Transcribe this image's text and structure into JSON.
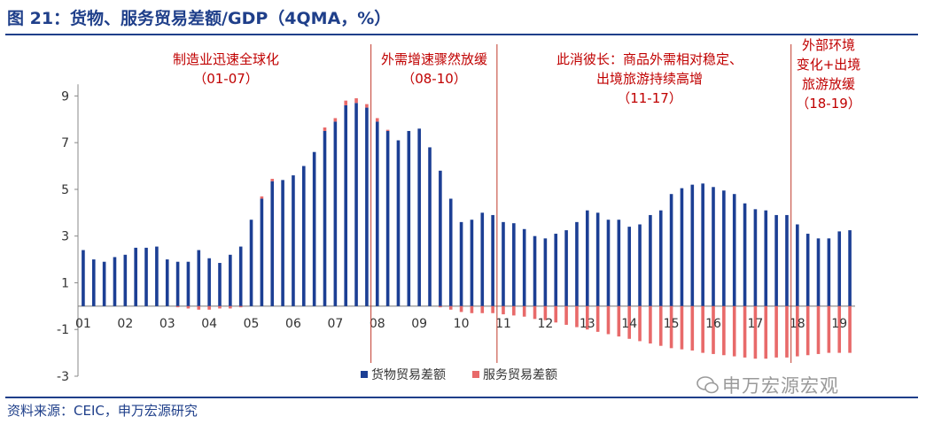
{
  "page": {
    "title": "图 21：货物、服务贸易差额/GDP（4QMA，%）",
    "source": "资料来源：CEIC，申万宏源研究",
    "watermark": "申万宏源宏观"
  },
  "chart_data": {
    "type": "bar",
    "title": "货物、服务贸易差额/GDP（4QMA，%）",
    "xlabel": "",
    "ylabel": "",
    "ylim": [
      -3,
      10
    ],
    "yticks": [
      -3,
      -1,
      1,
      3,
      5,
      7,
      9
    ],
    "x_tick_labels": [
      "01",
      "02",
      "03",
      "04",
      "05",
      "06",
      "07",
      "08",
      "09",
      "10",
      "11",
      "12",
      "13",
      "14",
      "15",
      "16",
      "17",
      "18",
      "19"
    ],
    "grid": false,
    "legend_position": "bottom",
    "colors": {
      "goods": "#1c3f94",
      "services": "#e86a6a",
      "vline": "#c0392b",
      "annotation": "#c00000",
      "title": "#1f3f8a"
    },
    "series": [
      {
        "name": "货物贸易差额",
        "values": [
          2.4,
          2.0,
          1.9,
          2.1,
          2.2,
          2.5,
          2.5,
          2.55,
          2.0,
          1.9,
          1.9,
          2.4,
          2.05,
          1.85,
          2.2,
          2.55,
          3.7,
          4.6,
          5.35,
          5.4,
          5.6,
          6.0,
          6.6,
          7.5,
          7.9,
          8.6,
          8.7,
          8.5,
          7.9,
          7.5,
          7.1,
          7.5,
          7.6,
          6.8,
          5.8,
          4.6,
          3.6,
          3.7,
          4.0,
          3.9,
          3.6,
          3.55,
          3.3,
          3.0,
          2.9,
          3.1,
          3.25,
          3.6,
          4.1,
          4.0,
          3.7,
          3.7,
          3.4,
          3.5,
          3.9,
          4.1,
          4.8,
          5.05,
          5.2,
          5.25,
          5.1,
          4.95,
          4.8,
          4.4,
          4.15,
          4.1,
          3.9,
          3.9,
          3.5,
          3.1,
          2.9,
          2.9,
          3.2,
          3.25
        ]
      },
      {
        "name": "服务贸易差额",
        "values": [
          0,
          0,
          0,
          0,
          0,
          0,
          0,
          0,
          0,
          -0.05,
          -0.1,
          -0.15,
          -0.15,
          -0.1,
          -0.1,
          -0.05,
          0,
          0.1,
          0.1,
          0,
          0,
          0,
          0,
          0.15,
          0.15,
          0.2,
          0.2,
          0.15,
          0.15,
          0.05,
          0,
          0,
          0,
          0,
          -0.05,
          -0.15,
          -0.25,
          -0.3,
          -0.3,
          -0.3,
          -0.35,
          -0.4,
          -0.45,
          -0.55,
          -0.6,
          -0.7,
          -0.8,
          -0.9,
          -1.0,
          -1.1,
          -1.2,
          -1.3,
          -1.4,
          -1.5,
          -1.6,
          -1.7,
          -1.8,
          -1.85,
          -1.9,
          -2.0,
          -2.05,
          -2.1,
          -2.15,
          -2.2,
          -2.25,
          -2.25,
          -2.2,
          -2.2,
          -2.15,
          -2.1,
          -2.05,
          -2.0,
          -2.0,
          -2.0
        ]
      }
    ],
    "periods": [
      {
        "label": "制造业迅速全球化",
        "sub": "（01-07）"
      },
      {
        "label": "外需增速骤然放缓",
        "sub": "（08-10）"
      },
      {
        "label": "此消彼长：商品外需相对稳定、",
        "label2": "出境旅游持续高增",
        "sub": "（11-17）"
      },
      {
        "label": "外部环境",
        "label2": "变化+出境",
        "label3": "旅游放缓",
        "sub": "（18-19）"
      }
    ]
  }
}
